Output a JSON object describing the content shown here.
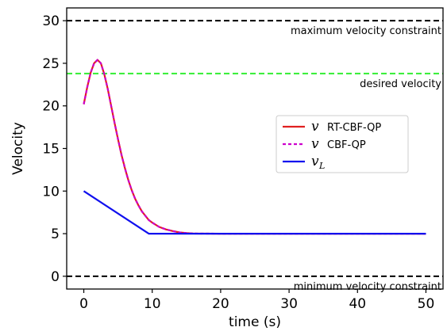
{
  "chart_data": {
    "type": "line",
    "title": "",
    "xlabel": "time (s)",
    "ylabel": "Velocity",
    "xlim": [
      -2.5,
      52.5
    ],
    "ylim": [
      -1.5,
      31.5
    ],
    "xticks": [
      0,
      10,
      20,
      30,
      40,
      50
    ],
    "yticks": [
      0,
      5,
      10,
      15,
      20,
      25,
      30
    ],
    "grid": false,
    "legend_position": "right",
    "reference_lines": [
      {
        "y": 30,
        "label": "maximum velocity constraint",
        "color": "#000000",
        "style": "dashed"
      },
      {
        "y": 23.8,
        "label": "desired velocity",
        "color": "#33ee33",
        "style": "dashed"
      },
      {
        "y": 0,
        "label": "minimum velocity constraint",
        "color": "#000000",
        "style": "dashed"
      }
    ],
    "series": [
      {
        "symbol": "v",
        "subscript": "",
        "name": "RT-CBF-QP",
        "color": "#e02020",
        "style": "solid",
        "x": [
          0,
          0.5,
          1,
          1.5,
          2,
          2.5,
          3,
          3.5,
          4,
          4.5,
          5,
          5.5,
          6,
          6.5,
          7,
          7.5,
          8,
          8.5,
          9,
          9.5,
          10,
          11,
          12,
          13,
          14,
          15,
          16,
          20,
          30,
          40,
          50
        ],
        "y": [
          20.2,
          22.2,
          23.9,
          25.0,
          25.4,
          25.0,
          23.7,
          22.0,
          20.0,
          18.0,
          16.1,
          14.3,
          12.7,
          11.3,
          10.1,
          9.1,
          8.3,
          7.6,
          7.1,
          6.6,
          6.3,
          5.8,
          5.5,
          5.3,
          5.15,
          5.07,
          5.02,
          5.0,
          5.0,
          5.0,
          5.0
        ]
      },
      {
        "symbol": "v",
        "subscript": "",
        "name": "CBF-QP",
        "color": "#cc00cc",
        "style": "dashed",
        "x": [
          0,
          0.5,
          1,
          1.5,
          2,
          2.5,
          3,
          3.5,
          4,
          4.5,
          5,
          5.5,
          6,
          6.5,
          7,
          7.5,
          8,
          8.5,
          9,
          9.5,
          10,
          11,
          12,
          13,
          14,
          15,
          16,
          20,
          30,
          40,
          50
        ],
        "y": [
          20.2,
          22.2,
          23.9,
          25.0,
          25.4,
          25.0,
          23.7,
          22.0,
          20.0,
          18.0,
          16.1,
          14.3,
          12.7,
          11.3,
          10.1,
          9.1,
          8.3,
          7.6,
          7.1,
          6.6,
          6.3,
          5.8,
          5.5,
          5.3,
          5.15,
          5.07,
          5.02,
          5.0,
          5.0,
          5.0,
          5.0
        ]
      },
      {
        "symbol": "v",
        "subscript": "L",
        "name": "",
        "color": "#1010ee",
        "style": "solid",
        "x": [
          0,
          9.5,
          20,
          30,
          40,
          50
        ],
        "y": [
          10.0,
          5.0,
          5.0,
          5.0,
          5.0,
          5.0
        ]
      }
    ]
  }
}
